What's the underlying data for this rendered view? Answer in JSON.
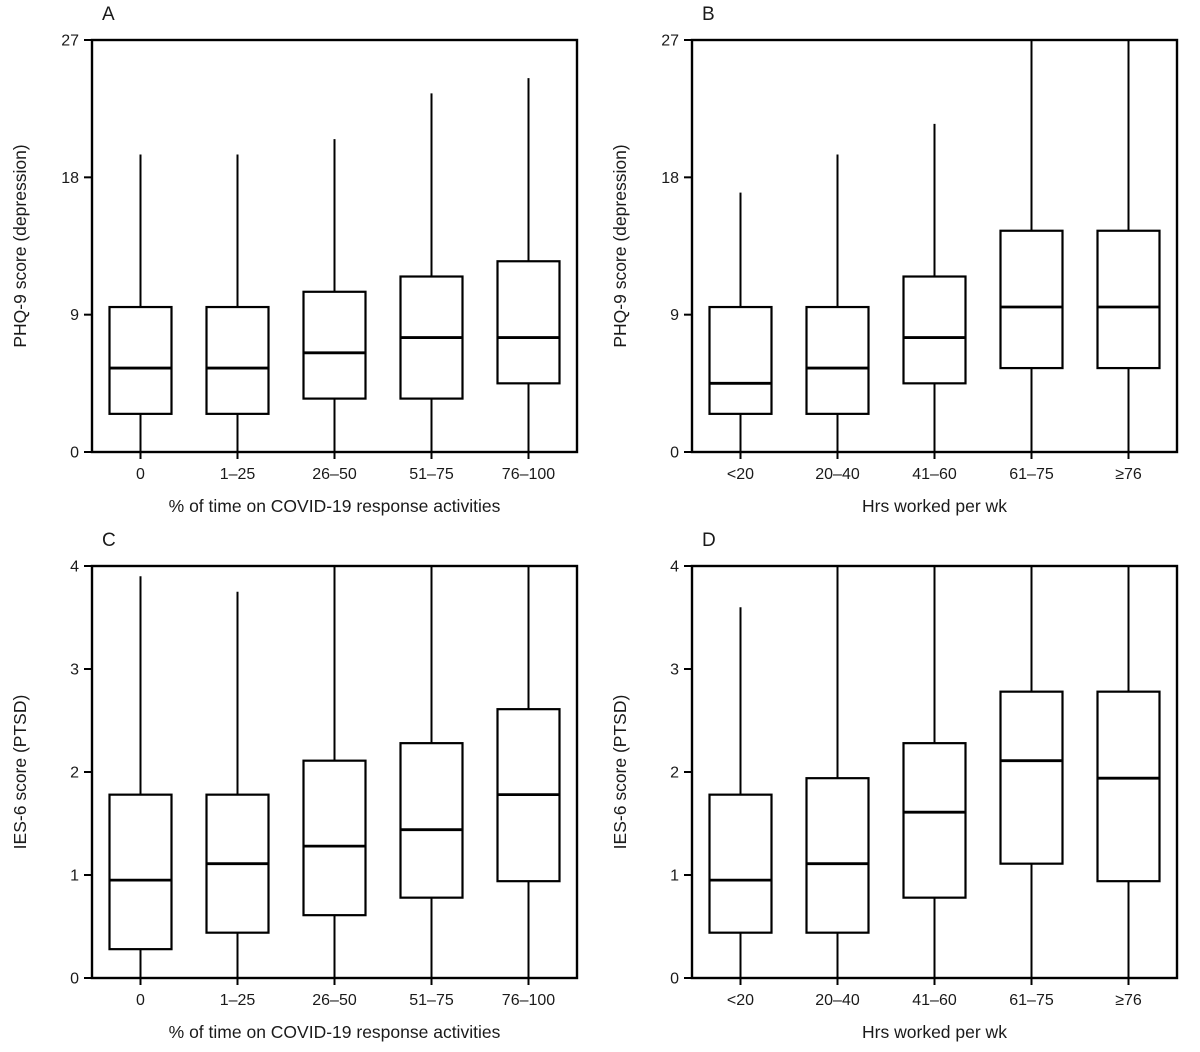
{
  "figure": {
    "background": "#ffffff",
    "line_color": "#000000",
    "panel_letters": [
      "A",
      "B",
      "C",
      "D"
    ]
  },
  "chart_data": [
    {
      "panel": "A",
      "type": "boxplot",
      "title": "",
      "xlabel": "% of time on COVID-19 response activities",
      "ylabel": "PHQ-9 score  (depression)",
      "ylim": [
        0,
        27
      ],
      "yticks": [
        0,
        9,
        18,
        27
      ],
      "grid": false,
      "categories": [
        "0",
        "1–25",
        "26–50",
        "51–75",
        "76–100"
      ],
      "boxes": [
        {
          "low": 0,
          "q1": 2.5,
          "median": 5.5,
          "q3": 9.5,
          "high": 19.5
        },
        {
          "low": 0,
          "q1": 2.5,
          "median": 5.5,
          "q3": 9.5,
          "high": 19.5
        },
        {
          "low": 0,
          "q1": 3.5,
          "median": 6.5,
          "q3": 10.5,
          "high": 20.5
        },
        {
          "low": 0,
          "q1": 3.5,
          "median": 7.5,
          "q3": 11.5,
          "high": 23.5
        },
        {
          "low": 0,
          "q1": 4.5,
          "median": 7.5,
          "q3": 12.5,
          "high": 24.5
        }
      ]
    },
    {
      "panel": "B",
      "type": "boxplot",
      "title": "",
      "xlabel": "Hrs worked per wk",
      "ylabel": "PHQ-9 score  (depression)",
      "ylim": [
        0,
        27
      ],
      "yticks": [
        0,
        9,
        18,
        27
      ],
      "grid": false,
      "categories": [
        "<20",
        "20–40",
        "41–60",
        "61–75",
        "≥76"
      ],
      "boxes": [
        {
          "low": 0,
          "q1": 2.5,
          "median": 4.5,
          "q3": 9.5,
          "high": 17.0
        },
        {
          "low": 0,
          "q1": 2.5,
          "median": 5.5,
          "q3": 9.5,
          "high": 19.5
        },
        {
          "low": 0,
          "q1": 4.5,
          "median": 7.5,
          "q3": 11.5,
          "high": 21.5
        },
        {
          "low": 0,
          "q1": 5.5,
          "median": 9.5,
          "q3": 14.5,
          "high": 27
        },
        {
          "low": 0,
          "q1": 5.5,
          "median": 9.5,
          "q3": 14.5,
          "high": 27
        }
      ]
    },
    {
      "panel": "C",
      "type": "boxplot",
      "title": "",
      "xlabel": "% of time on COVID-19 response activities",
      "ylabel": "IES-6 score (PTSD)",
      "ylim": [
        0,
        4
      ],
      "yticks": [
        0,
        1,
        2,
        3,
        4
      ],
      "grid": false,
      "categories": [
        "0",
        "1–25",
        "26–50",
        "51–75",
        "76–100"
      ],
      "boxes": [
        {
          "low": 0,
          "q1": 0.28,
          "median": 0.95,
          "q3": 1.78,
          "high": 3.9
        },
        {
          "low": 0,
          "q1": 0.44,
          "median": 1.11,
          "q3": 1.78,
          "high": 3.75
        },
        {
          "low": 0,
          "q1": 0.61,
          "median": 1.28,
          "q3": 2.11,
          "high": 4
        },
        {
          "low": 0,
          "q1": 0.78,
          "median": 1.44,
          "q3": 2.28,
          "high": 4
        },
        {
          "low": 0,
          "q1": 0.94,
          "median": 1.78,
          "q3": 2.61,
          "high": 4
        }
      ]
    },
    {
      "panel": "D",
      "type": "boxplot",
      "title": "",
      "xlabel": "Hrs worked per wk",
      "ylabel": "IES-6 score (PTSD)",
      "ylim": [
        0,
        4
      ],
      "yticks": [
        0,
        1,
        2,
        3,
        4
      ],
      "grid": false,
      "categories": [
        "<20",
        "20–40",
        "41–60",
        "61–75",
        "≥76"
      ],
      "boxes": [
        {
          "low": 0,
          "q1": 0.44,
          "median": 0.95,
          "q3": 1.78,
          "high": 3.6
        },
        {
          "low": 0,
          "q1": 0.44,
          "median": 1.11,
          "q3": 1.94,
          "high": 4
        },
        {
          "low": 0,
          "q1": 0.78,
          "median": 1.61,
          "q3": 2.28,
          "high": 4
        },
        {
          "low": 0,
          "q1": 1.11,
          "median": 2.11,
          "q3": 2.78,
          "high": 4
        },
        {
          "low": 0,
          "q1": 0.94,
          "median": 1.94,
          "q3": 2.78,
          "high": 4
        }
      ]
    }
  ]
}
